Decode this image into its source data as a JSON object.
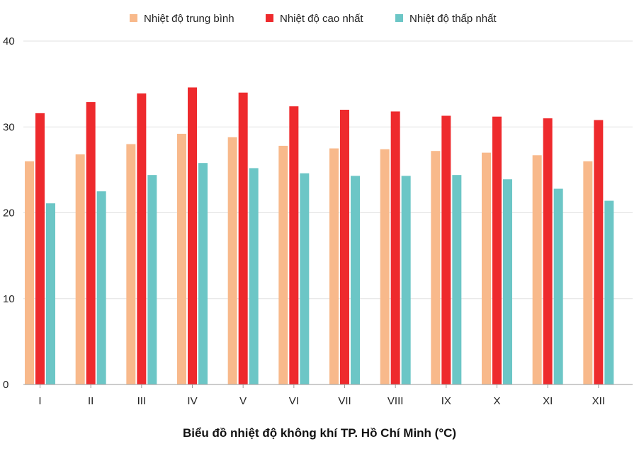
{
  "chart_data": {
    "type": "bar",
    "title": "Biểu đồ nhiệt độ không khí TP. Hồ Chí Minh (°C)",
    "xlabel": "",
    "ylabel": "",
    "ylim": [
      0,
      40
    ],
    "yticks": [
      "0",
      "10",
      "20",
      "30",
      "40"
    ],
    "grid": true,
    "legend_position": "top-center",
    "categories": [
      "I",
      "II",
      "III",
      "IV",
      "V",
      "VI",
      "VII",
      "VIII",
      "IX",
      "X",
      "XI",
      "XII"
    ],
    "series": [
      {
        "name": "Nhiệt độ trung bình",
        "color": "#f8b98b",
        "values": [
          26.0,
          26.8,
          28.0,
          29.2,
          28.8,
          27.8,
          27.5,
          27.4,
          27.2,
          27.0,
          26.7,
          26.0
        ]
      },
      {
        "name": "Nhiệt độ cao nhất",
        "color": "#ee2a2d",
        "values": [
          31.6,
          32.9,
          33.9,
          34.6,
          34.0,
          32.4,
          32.0,
          31.8,
          31.3,
          31.2,
          31.0,
          30.8
        ]
      },
      {
        "name": "Nhiệt độ thấp nhất",
        "color": "#6cc6c6",
        "values": [
          21.1,
          22.5,
          24.4,
          25.8,
          25.2,
          24.6,
          24.3,
          24.3,
          24.4,
          23.9,
          22.8,
          21.4
        ]
      }
    ]
  }
}
